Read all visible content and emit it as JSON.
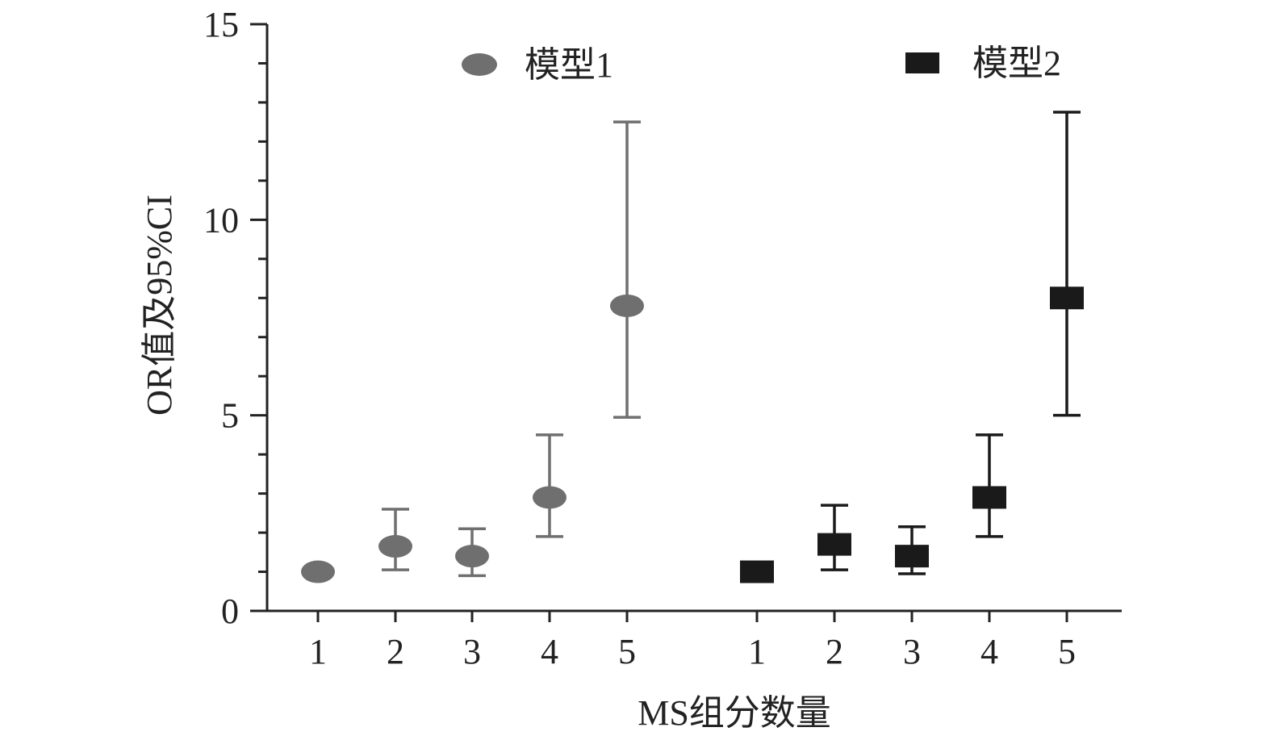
{
  "chart_data": {
    "type": "scatter",
    "title": "",
    "xlabel": "MS组分数量",
    "ylabel": "OR值及95%CI",
    "ylim": [
      0,
      15
    ],
    "yticks": [
      "0",
      "5",
      "10",
      "15"
    ],
    "grid": false,
    "legend_placement": "top",
    "series": [
      {
        "name": "模型1",
        "marker": "circle",
        "color": "#6f6f6f",
        "categories": [
          "1",
          "2",
          "3",
          "4",
          "5"
        ],
        "values": [
          1.0,
          1.65,
          1.4,
          2.9,
          7.8
        ],
        "ci_low": [
          null,
          1.05,
          0.9,
          1.9,
          4.95
        ],
        "ci_high": [
          null,
          2.6,
          2.1,
          4.5,
          12.5
        ]
      },
      {
        "name": "模型2",
        "marker": "square",
        "color": "#1a1a1a",
        "categories": [
          "1",
          "2",
          "3",
          "4",
          "5"
        ],
        "values": [
          1.0,
          1.7,
          1.4,
          2.9,
          8.0
        ],
        "ci_low": [
          null,
          1.05,
          0.95,
          1.9,
          5.0
        ],
        "ci_high": [
          null,
          2.7,
          2.15,
          4.5,
          12.75
        ]
      }
    ]
  }
}
